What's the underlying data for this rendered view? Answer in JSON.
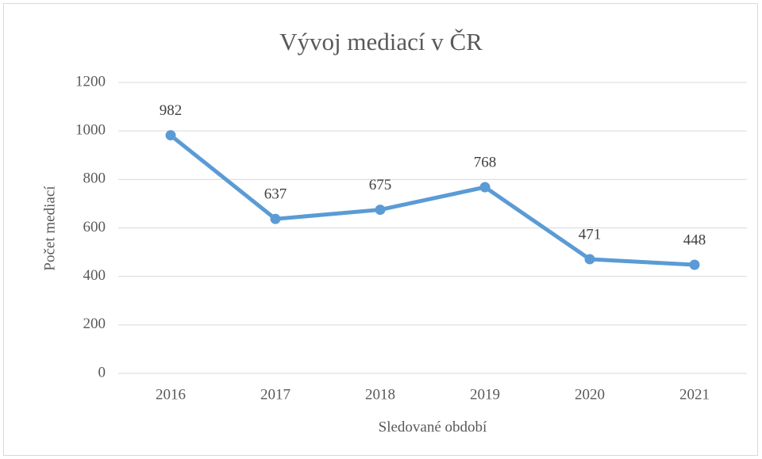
{
  "chart_data": {
    "type": "line",
    "title": "Vývoj mediací v ČR",
    "x_label": "Sledované období",
    "y_label": "Počet mediací",
    "categories": [
      "2016",
      "2017",
      "2018",
      "2019",
      "2020",
      "2021"
    ],
    "series": [
      {
        "name": "Počet mediací",
        "color": "#5b9bd5",
        "values": [
          982,
          637,
          675,
          768,
          471,
          448
        ]
      }
    ],
    "ylim": [
      0,
      1200
    ],
    "yticks": [
      0,
      200,
      400,
      600,
      800,
      1000,
      1200
    ],
    "grid": true,
    "data_labels": true
  }
}
